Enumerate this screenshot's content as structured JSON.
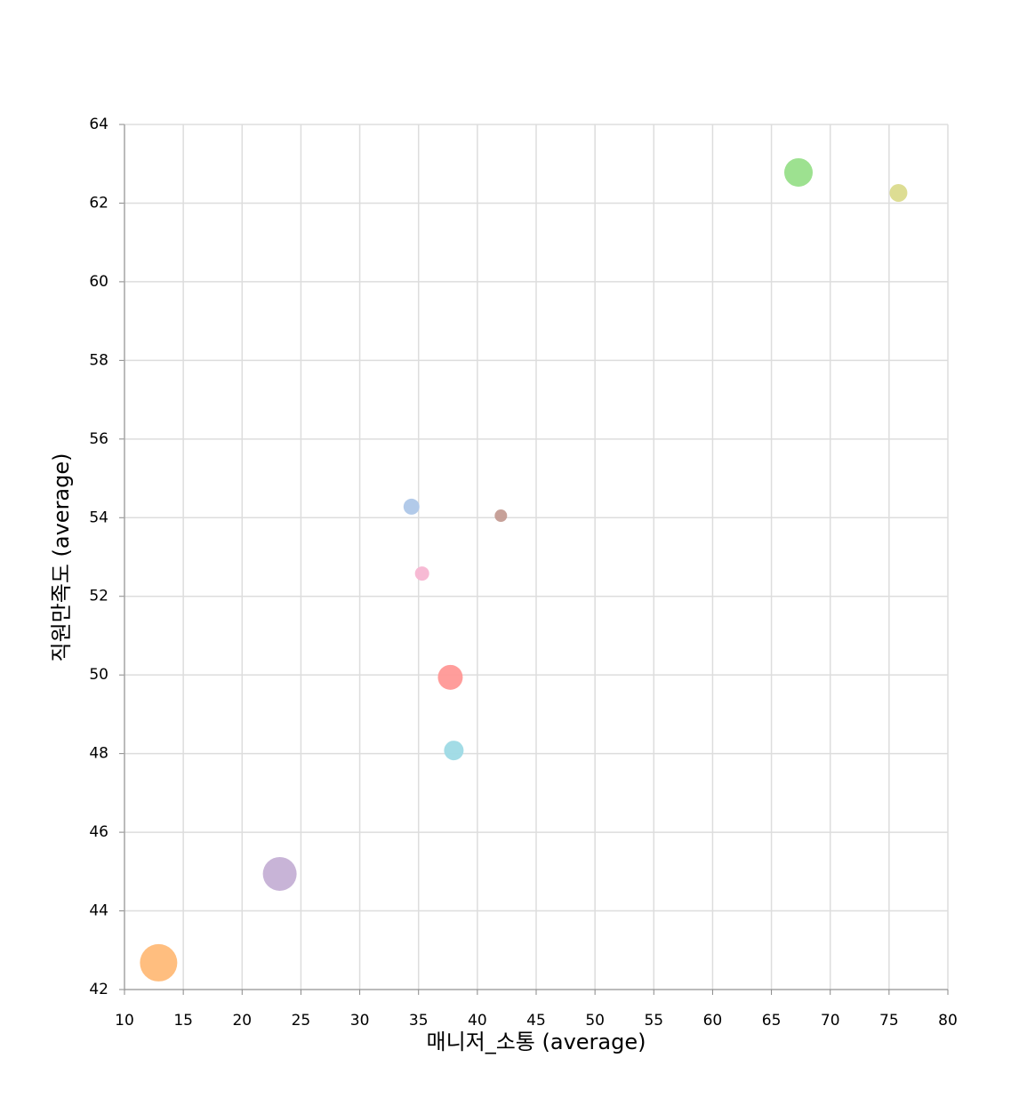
{
  "chart_data": {
    "type": "scatter",
    "x_label": "매니저_소통 (average)",
    "y_label": "직원만족도 (average)",
    "x": [
      67.3,
      75.8,
      34.4,
      42.0,
      35.3,
      37.7,
      38.0,
      23.2,
      12.9
    ],
    "values": [
      62.78,
      62.26,
      54.28,
      54.05,
      52.58,
      49.94,
      48.08,
      44.94,
      42.68
    ],
    "sizes": [
      256,
      100,
      81,
      49,
      64,
      196,
      121,
      361,
      441
    ],
    "colors": [
      "#98df8a",
      "#dbdb8d",
      "#aec7e8",
      "#c49c94",
      "#f7b6d2",
      "#ff9896",
      "#9edae5",
      "#c5b0d5",
      "#ffbb78"
    ],
    "xlim": [
      10,
      80
    ],
    "xticks": [
      10,
      15,
      20,
      25,
      30,
      35,
      40,
      45,
      50,
      55,
      60,
      65,
      70,
      75,
      80
    ],
    "ylim": [
      42,
      64
    ],
    "yticks": [
      42,
      44,
      46,
      48,
      50,
      52,
      54,
      56,
      58,
      60,
      62,
      64
    ],
    "grid": true
  }
}
